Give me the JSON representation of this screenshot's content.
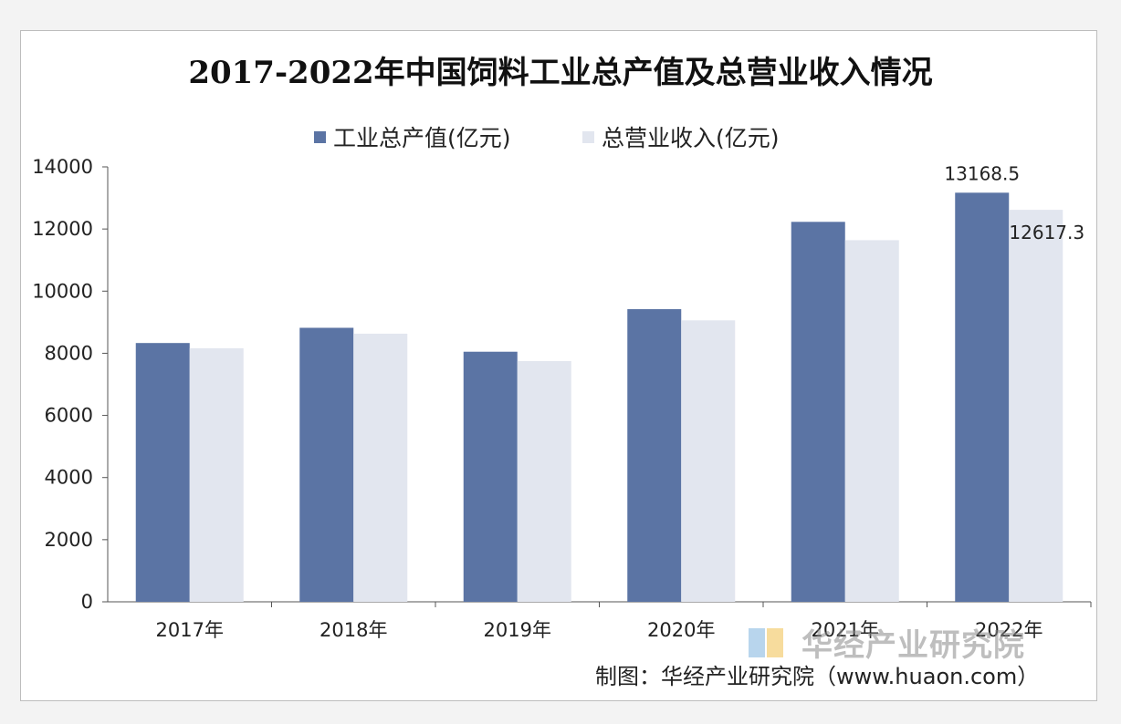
{
  "chart_data": {
    "type": "bar",
    "title": "2017-2022年中国饲料工业总产值及总营业收入情况",
    "categories": [
      "2017年",
      "2018年",
      "2019年",
      "2020年",
      "2021年",
      "2022年"
    ],
    "series": [
      {
        "name": "工业总产值(亿元)",
        "values": [
          8330,
          8820,
          8050,
          9420,
          12230,
          13168.5
        ],
        "color": "#5b74a4"
      },
      {
        "name": "总营业收入(亿元)",
        "values": [
          8160,
          8630,
          7750,
          9060,
          11640,
          12617.3
        ],
        "color": "#e2e6ef"
      }
    ],
    "data_labels": [
      {
        "series": 0,
        "index": 5,
        "text": "13168.5"
      },
      {
        "series": 1,
        "index": 5,
        "text": "12617.3"
      }
    ],
    "ylim": [
      0,
      14000
    ],
    "yticks": [
      "0",
      "2000",
      "4000",
      "6000",
      "8000",
      "10000",
      "12000",
      "14000"
    ],
    "ytick_values": [
      0,
      2000,
      4000,
      6000,
      8000,
      10000,
      12000,
      14000
    ],
    "grid": false,
    "legend_position": "top"
  },
  "watermark": {
    "text": "华经产业研究院"
  },
  "source": {
    "text": "制图：华经产业研究院（www.huaon.com）"
  }
}
